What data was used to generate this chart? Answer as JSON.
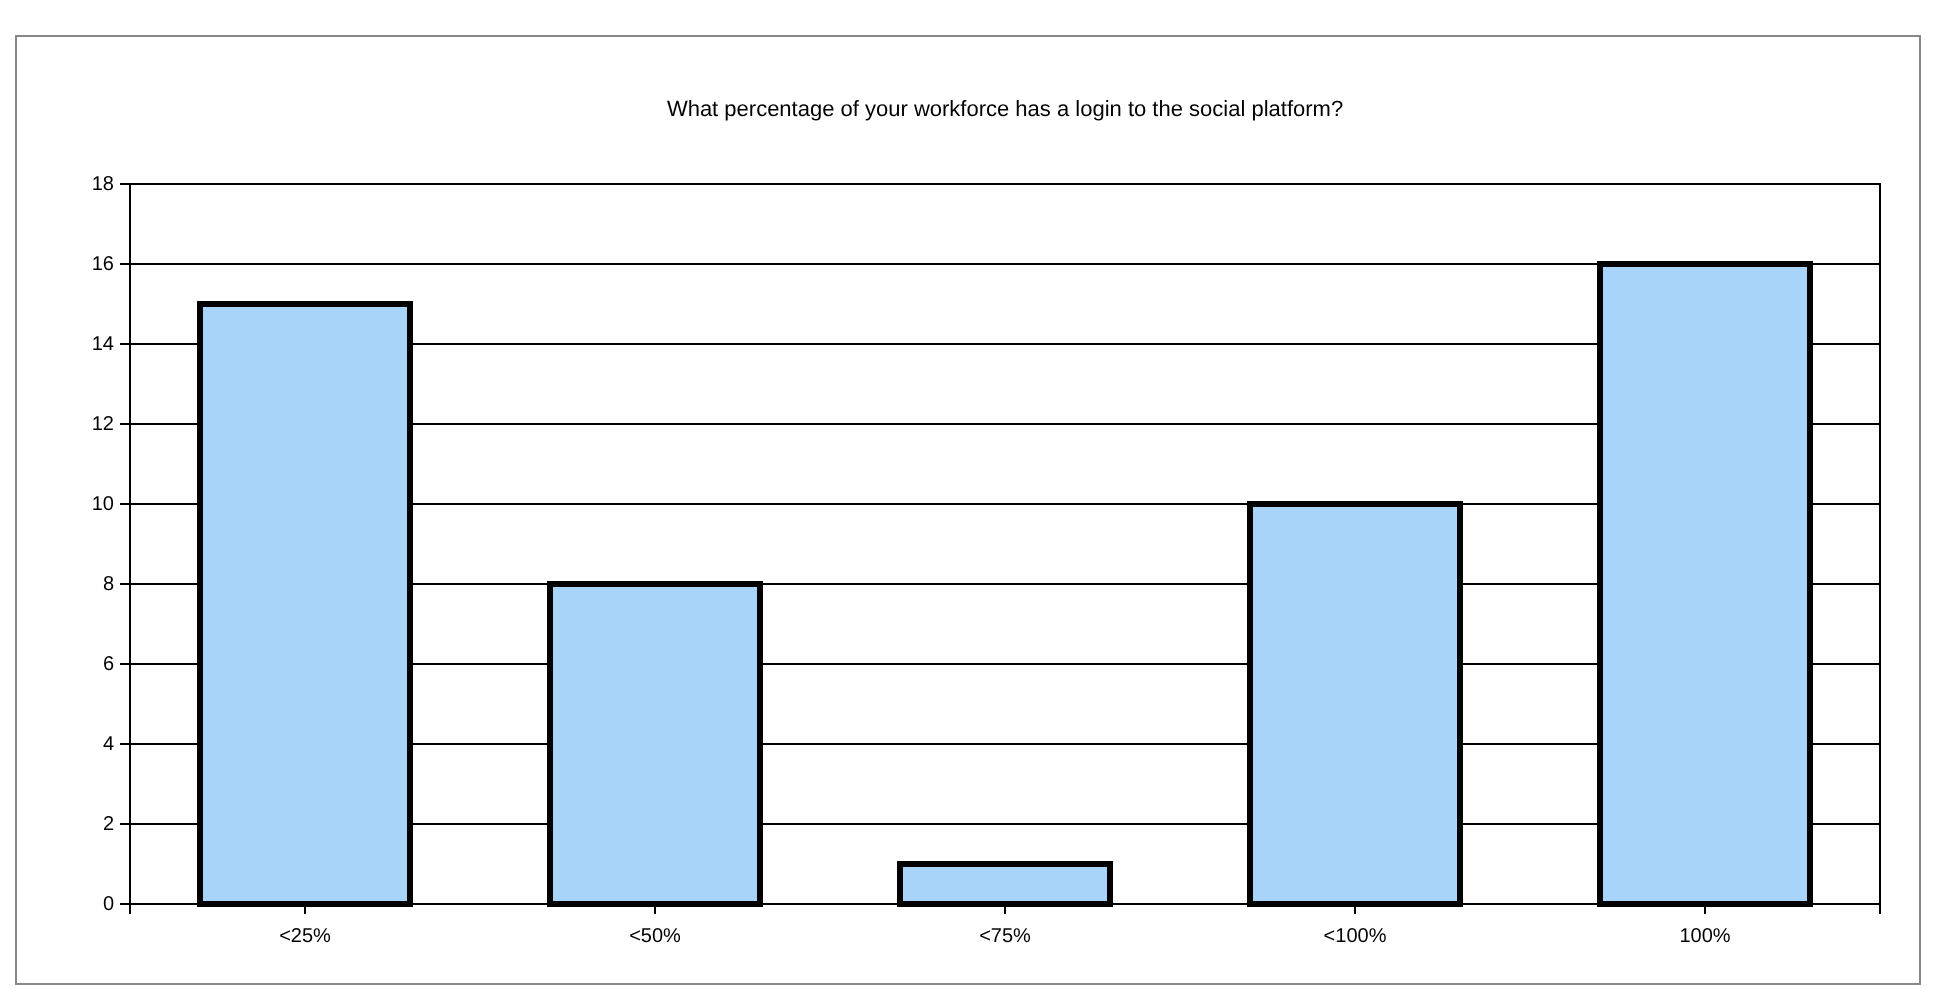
{
  "chart_data": {
    "type": "bar",
    "title": "What percentage of your workforce has a login to the social platform?",
    "categories": [
      "<25%",
      "<50%",
      "<75%",
      "<100%",
      "100%"
    ],
    "values": [
      15,
      8,
      1,
      10,
      16
    ],
    "color": "#a9d4fa",
    "ylim": [
      0,
      18
    ],
    "yticks": [
      0,
      2,
      4,
      6,
      8,
      10,
      12,
      14,
      16,
      18
    ],
    "grid": "y"
  }
}
